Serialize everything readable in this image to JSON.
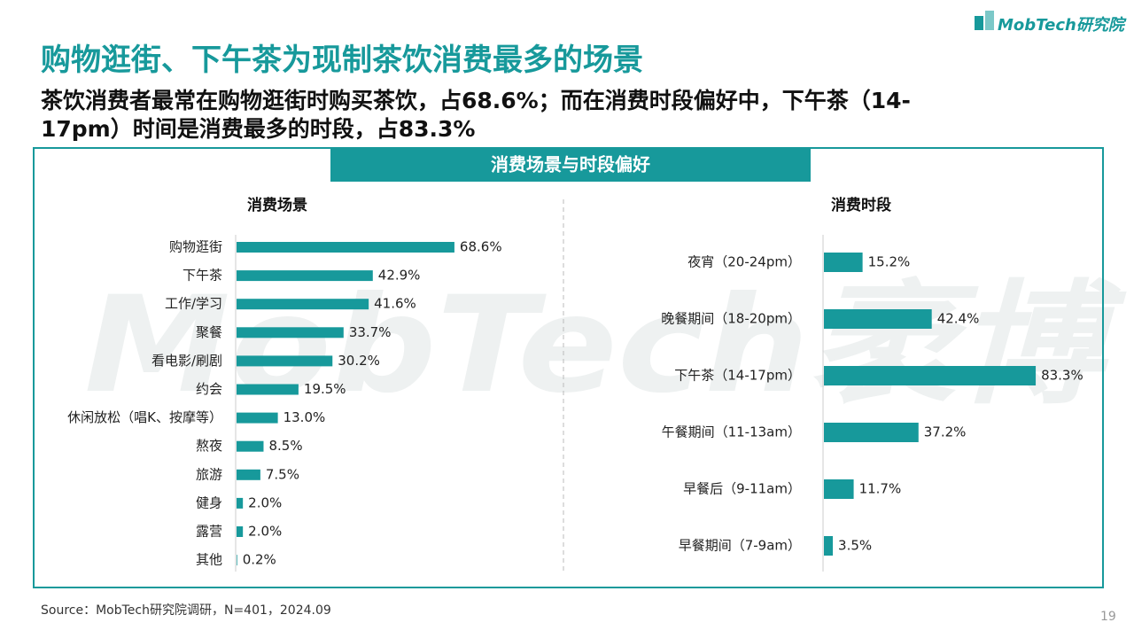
{
  "title": "购物逛街、下午茶为现制茶饮消费最多的场景",
  "subtitle_lines": [
    "茶饮消费者最常在购物逛街时购买茶饮，占68.6%；而在消费时段偏好中，下午茶（14-",
    "17pm）时间是消费最多的时段，占83.3%"
  ],
  "logo": "MobTech研究院",
  "panel_title": "消费场景与时段偏好",
  "watermark": "MobTech袤博",
  "source": "Source：MobTech研究院调研，N=401，2024.09",
  "page_number": "19",
  "chart_data": [
    {
      "type": "bar",
      "orientation": "horizontal",
      "title": "消费场景",
      "color": "#17999b",
      "categories": [
        "购物逛街",
        "下午茶",
        "工作/学习",
        "聚餐",
        "看电影/刷剧",
        "约会",
        "休闲放松（唱K、按摩等）",
        "熬夜",
        "旅游",
        "健身",
        "露营",
        "其他"
      ],
      "values": [
        68.6,
        42.9,
        41.6,
        33.7,
        30.2,
        19.5,
        13.0,
        8.5,
        7.5,
        2.0,
        2.0,
        0.2
      ],
      "value_labels": [
        "68.6%",
        "42.9%",
        "41.6%",
        "33.7%",
        "30.2%",
        "19.5%",
        "13.0%",
        "8.5%",
        "7.5%",
        "2.0%",
        "2.0%",
        "0.2%"
      ]
    },
    {
      "type": "bar",
      "orientation": "horizontal",
      "title": "消费时段",
      "color": "#17999b",
      "categories": [
        "夜宵（20-24pm）",
        "晚餐期间（18-20pm）",
        "下午茶（14-17pm）",
        "午餐期间（11-13am）",
        "早餐后（9-11am）",
        "早餐期间（7-9am）"
      ],
      "values": [
        15.2,
        42.4,
        83.3,
        37.2,
        11.7,
        3.5
      ],
      "value_labels": [
        "15.2%",
        "42.4%",
        "83.3%",
        "37.2%",
        "11.7%",
        "3.5%"
      ]
    }
  ]
}
